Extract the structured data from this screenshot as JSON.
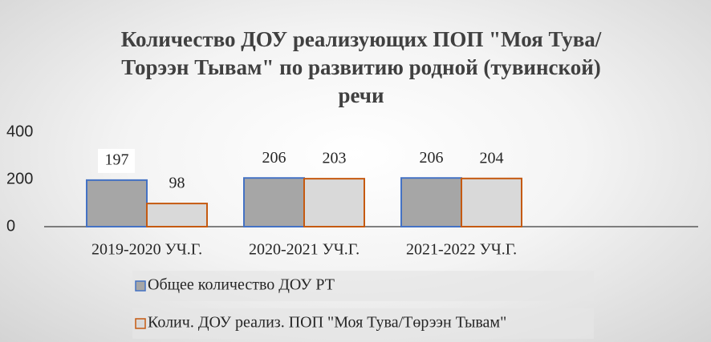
{
  "chart_data": {
    "type": "bar",
    "title": "Количество ДОУ реализующих ПОП \"Моя Тува/Торээн Тывам\" по развитию родной (тувинской) речи",
    "categories": [
      "2019-2020 УЧ.Г.",
      "2020-2021 УЧ.Г.",
      "2021-2022 УЧ.Г."
    ],
    "series": [
      {
        "name": "Общее количество ДОУ РТ",
        "color": "#a6a6a6",
        "edge": "#4472c4",
        "values": [
          197,
          206,
          206
        ]
      },
      {
        "name": "Колич. ДОУ реализ. ПОП \"Моя Тува/Төрээн Тывам\"",
        "color": "#d9d9d9",
        "edge": "#c55a11",
        "values": [
          98,
          203,
          204
        ]
      }
    ],
    "ylim": [
      0,
      400
    ],
    "yticks": [
      0,
      200,
      400
    ],
    "grid": false,
    "legend": "bottom"
  }
}
